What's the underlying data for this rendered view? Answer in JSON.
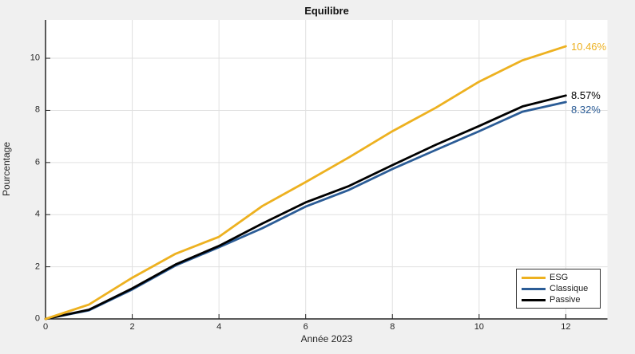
{
  "figure": {
    "background": "#f0f0f0",
    "plot_background": "#ffffff",
    "grid_color": "#e0e0e0",
    "axis_color": "#262626"
  },
  "chart_data": {
    "type": "line",
    "title": "Equilibre",
    "xlabel": "Année 2023",
    "ylabel": "Pourcentage",
    "xlim": [
      0,
      12.96
    ],
    "ylim": [
      0,
      11.47
    ],
    "xticks": [
      0,
      2,
      4,
      6,
      8,
      10,
      12
    ],
    "yticks": [
      0,
      2,
      4,
      6,
      8,
      10
    ],
    "grid": true,
    "legend_position": "bottom-right",
    "x": [
      0,
      1,
      2,
      3,
      4,
      5,
      6,
      7,
      8,
      9,
      10,
      11,
      12
    ],
    "series": [
      {
        "name": "ESG",
        "color": "#EDB120",
        "end_label": "10.46%",
        "values": [
          0,
          0.55,
          1.58,
          2.5,
          3.15,
          4.33,
          5.25,
          6.2,
          7.2,
          8.1,
          9.1,
          9.92,
          10.46
        ]
      },
      {
        "name": "Classique",
        "color": "#2B5C96",
        "end_label": "8.32%",
        "values": [
          0,
          0.33,
          1.13,
          2.05,
          2.75,
          3.48,
          4.31,
          4.95,
          5.75,
          6.48,
          7.2,
          7.95,
          8.32
        ]
      },
      {
        "name": "Passive",
        "color": "#000000",
        "end_label": "8.57%",
        "values": [
          0,
          0.35,
          1.17,
          2.09,
          2.8,
          3.66,
          4.47,
          5.1,
          5.9,
          6.68,
          7.4,
          8.15,
          8.57
        ]
      }
    ]
  }
}
